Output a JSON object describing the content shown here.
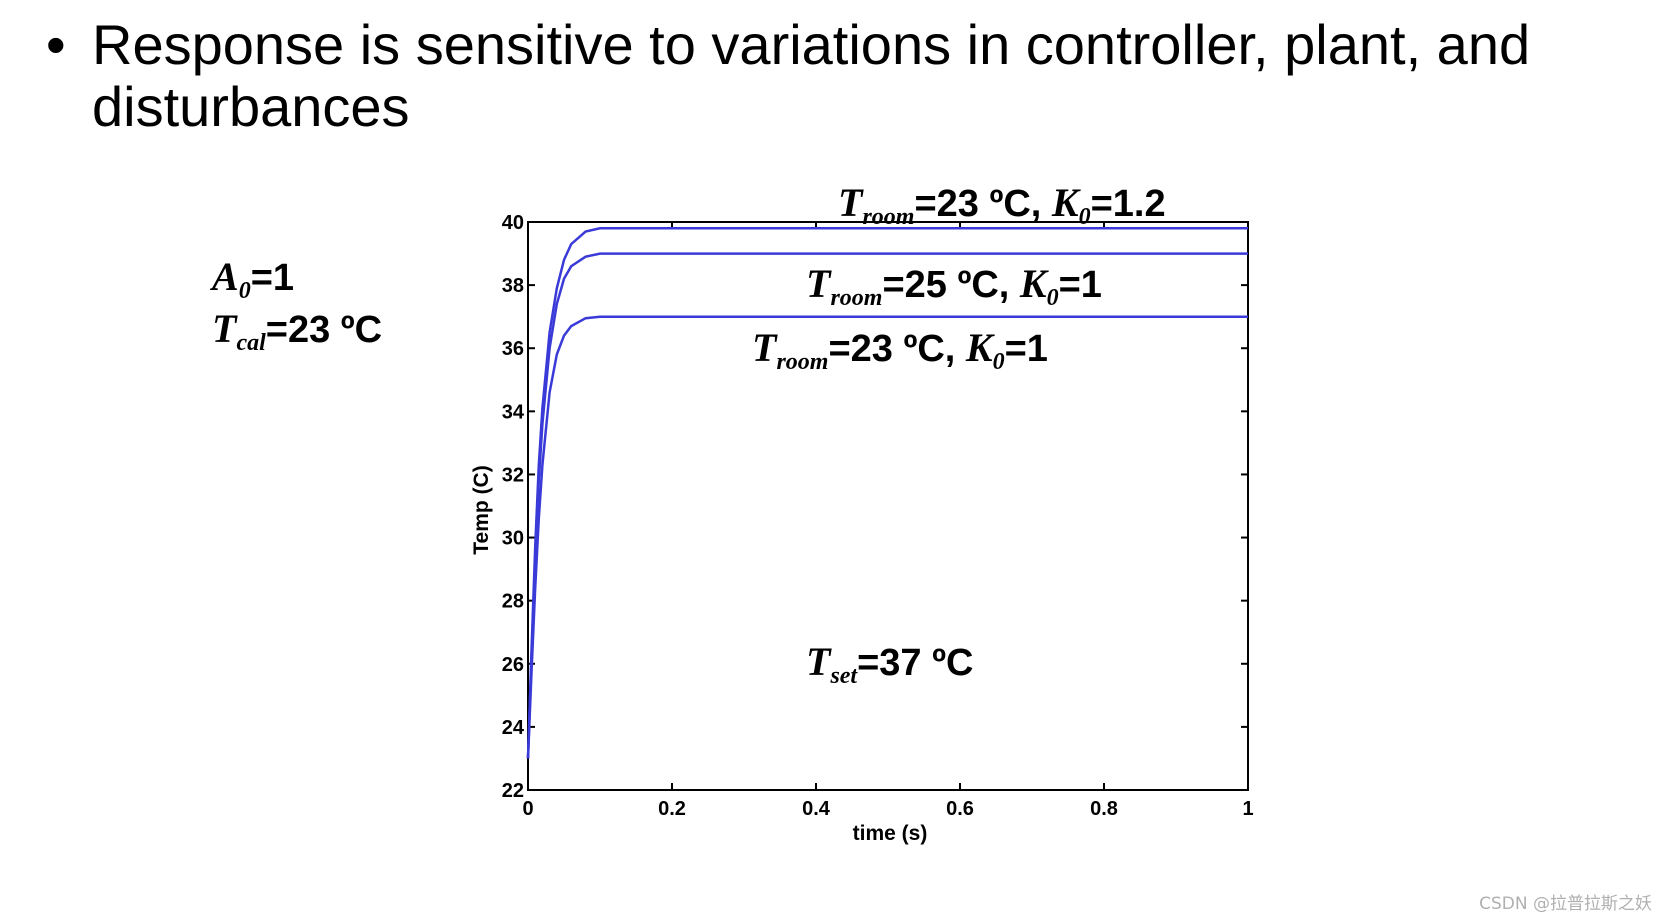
{
  "slide": {
    "bullet_symbol": "•",
    "bullet_text": "Response is sensitive to variations in controller, plant, and disturbances"
  },
  "params": [
    {
      "var": "A",
      "sub": "0",
      "rest": "=1"
    },
    {
      "var": "T",
      "sub": "cal",
      "rest": "=23 ºC"
    }
  ],
  "chart_data": {
    "type": "line",
    "xlabel": "time (s)",
    "ylabel": "Temp (C)",
    "xlim": [
      0,
      1
    ],
    "ylim": [
      22,
      40
    ],
    "xticks": [
      0,
      0.2,
      0.4,
      0.6,
      0.8,
      1
    ],
    "xtick_labels": [
      "0",
      "0.2",
      "0.4",
      "0.6",
      "0.8",
      "1"
    ],
    "yticks": [
      22,
      24,
      26,
      28,
      30,
      32,
      34,
      36,
      38,
      40
    ],
    "ytick_labels": [
      "22",
      "24",
      "26",
      "28",
      "30",
      "32",
      "34",
      "36",
      "38",
      "40"
    ],
    "grid": false,
    "line_color": "#3a3ad8",
    "series": [
      {
        "label": {
          "var": "T",
          "sub": "room",
          "rest": "=23 ºC, ",
          "var2": "K",
          "sub2": "0",
          "rest2": "=1.2"
        },
        "x": [
          0,
          0.005,
          0.01,
          0.015,
          0.02,
          0.03,
          0.04,
          0.05,
          0.06,
          0.08,
          0.1,
          0.15,
          0.2,
          0.4,
          0.6,
          0.8,
          1
        ],
        "y": [
          23,
          26.5,
          29.7,
          32.3,
          34.1,
          36.5,
          37.9,
          38.8,
          39.3,
          39.7,
          39.8,
          39.8,
          39.8,
          39.8,
          39.8,
          39.8,
          39.8
        ]
      },
      {
        "label": {
          "var": "T",
          "sub": "room",
          "rest": "=25 ºC, ",
          "var2": "K",
          "sub2": "0",
          "rest2": "=1"
        },
        "x": [
          0,
          0.005,
          0.01,
          0.015,
          0.02,
          0.03,
          0.04,
          0.05,
          0.06,
          0.08,
          0.1,
          0.15,
          0.2,
          0.4,
          0.6,
          0.8,
          1
        ],
        "y": [
          23,
          26.3,
          29.3,
          31.8,
          33.6,
          36.0,
          37.4,
          38.2,
          38.6,
          38.9,
          39.0,
          39.0,
          39.0,
          39.0,
          39.0,
          39.0,
          39.0
        ]
      },
      {
        "label": {
          "var": "T",
          "sub": "room",
          "rest": "=23 ºC, ",
          "var2": "K",
          "sub2": "0",
          "rest2": "=1"
        },
        "x": [
          0,
          0.005,
          0.01,
          0.015,
          0.02,
          0.03,
          0.04,
          0.05,
          0.06,
          0.08,
          0.1,
          0.15,
          0.2,
          0.4,
          0.6,
          0.8,
          1
        ],
        "y": [
          23,
          25.8,
          28.4,
          30.6,
          32.3,
          34.6,
          35.8,
          36.4,
          36.7,
          36.95,
          37.0,
          37.0,
          37.0,
          37.0,
          37.0,
          37.0,
          37.0
        ]
      }
    ],
    "annotation": {
      "var": "T",
      "sub": "set",
      "rest": "=37 ºC"
    }
  },
  "watermark": "CSDN @拉普拉斯之妖"
}
